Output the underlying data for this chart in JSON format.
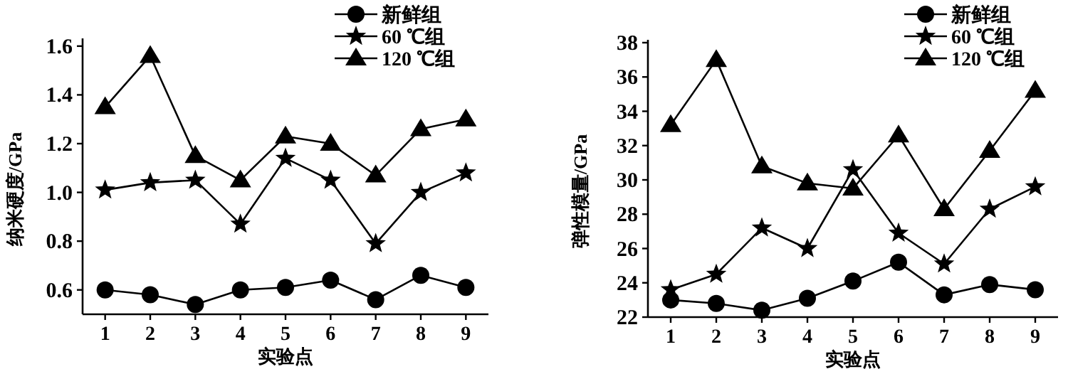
{
  "chart_data": [
    {
      "type": "line",
      "xlabel": "实验点",
      "ylabel": "纳米硬度/GPa",
      "x": [
        1,
        2,
        3,
        4,
        5,
        6,
        7,
        8,
        9
      ],
      "xlim": [
        0.5,
        9.5
      ],
      "xticks": [
        1,
        2,
        3,
        4,
        5,
        6,
        7,
        8,
        9
      ],
      "ylim": [
        0.5,
        1.62
      ],
      "yticks": [
        0.6,
        0.8,
        {
          "value": 1.0,
          "label": "1.0"
        },
        1.2,
        1.4,
        1.6
      ],
      "grid": false,
      "legend": "top right",
      "series": [
        {
          "name": "新鲜组",
          "color": "#000000",
          "marker": "circle",
          "values": [
            0.6,
            0.58,
            0.54,
            0.6,
            0.61,
            0.64,
            0.56,
            0.66,
            0.61
          ]
        },
        {
          "name": "60 ℃组",
          "color": "#000000",
          "marker": "star",
          "values": [
            1.01,
            1.04,
            1.05,
            0.87,
            1.14,
            1.05,
            0.79,
            1.0,
            1.08
          ]
        },
        {
          "name": "120 ℃组",
          "color": "#000000",
          "marker": "triangle",
          "values": [
            1.35,
            1.56,
            1.15,
            1.05,
            1.23,
            1.2,
            1.07,
            1.26,
            1.3
          ]
        }
      ]
    },
    {
      "type": "line",
      "xlabel": "实验点",
      "ylabel": "弹性模量/GPa",
      "x": [
        1,
        2,
        3,
        4,
        5,
        6,
        7,
        8,
        9
      ],
      "xlim": [
        0.5,
        9.5
      ],
      "xticks": [
        1,
        2,
        3,
        4,
        5,
        6,
        7,
        8,
        9
      ],
      "ylim": [
        22,
        38
      ],
      "yticks": [
        22,
        24,
        26,
        28,
        30,
        32,
        34,
        36,
        38
      ],
      "grid": false,
      "legend": "top right",
      "series": [
        {
          "name": "新鲜组",
          "color": "#000000",
          "marker": "circle",
          "values": [
            23.0,
            22.8,
            22.4,
            23.1,
            24.1,
            25.2,
            23.3,
            23.9,
            23.6
          ]
        },
        {
          "name": "60 ℃组",
          "color": "#000000",
          "marker": "star",
          "values": [
            23.6,
            24.5,
            27.2,
            26.0,
            30.6,
            26.9,
            25.1,
            28.3,
            29.6
          ]
        },
        {
          "name": "120 ℃组",
          "color": "#000000",
          "marker": "triangle",
          "values": [
            33.2,
            37.0,
            30.8,
            29.8,
            29.5,
            32.6,
            28.3,
            31.7,
            35.2
          ]
        }
      ]
    }
  ]
}
